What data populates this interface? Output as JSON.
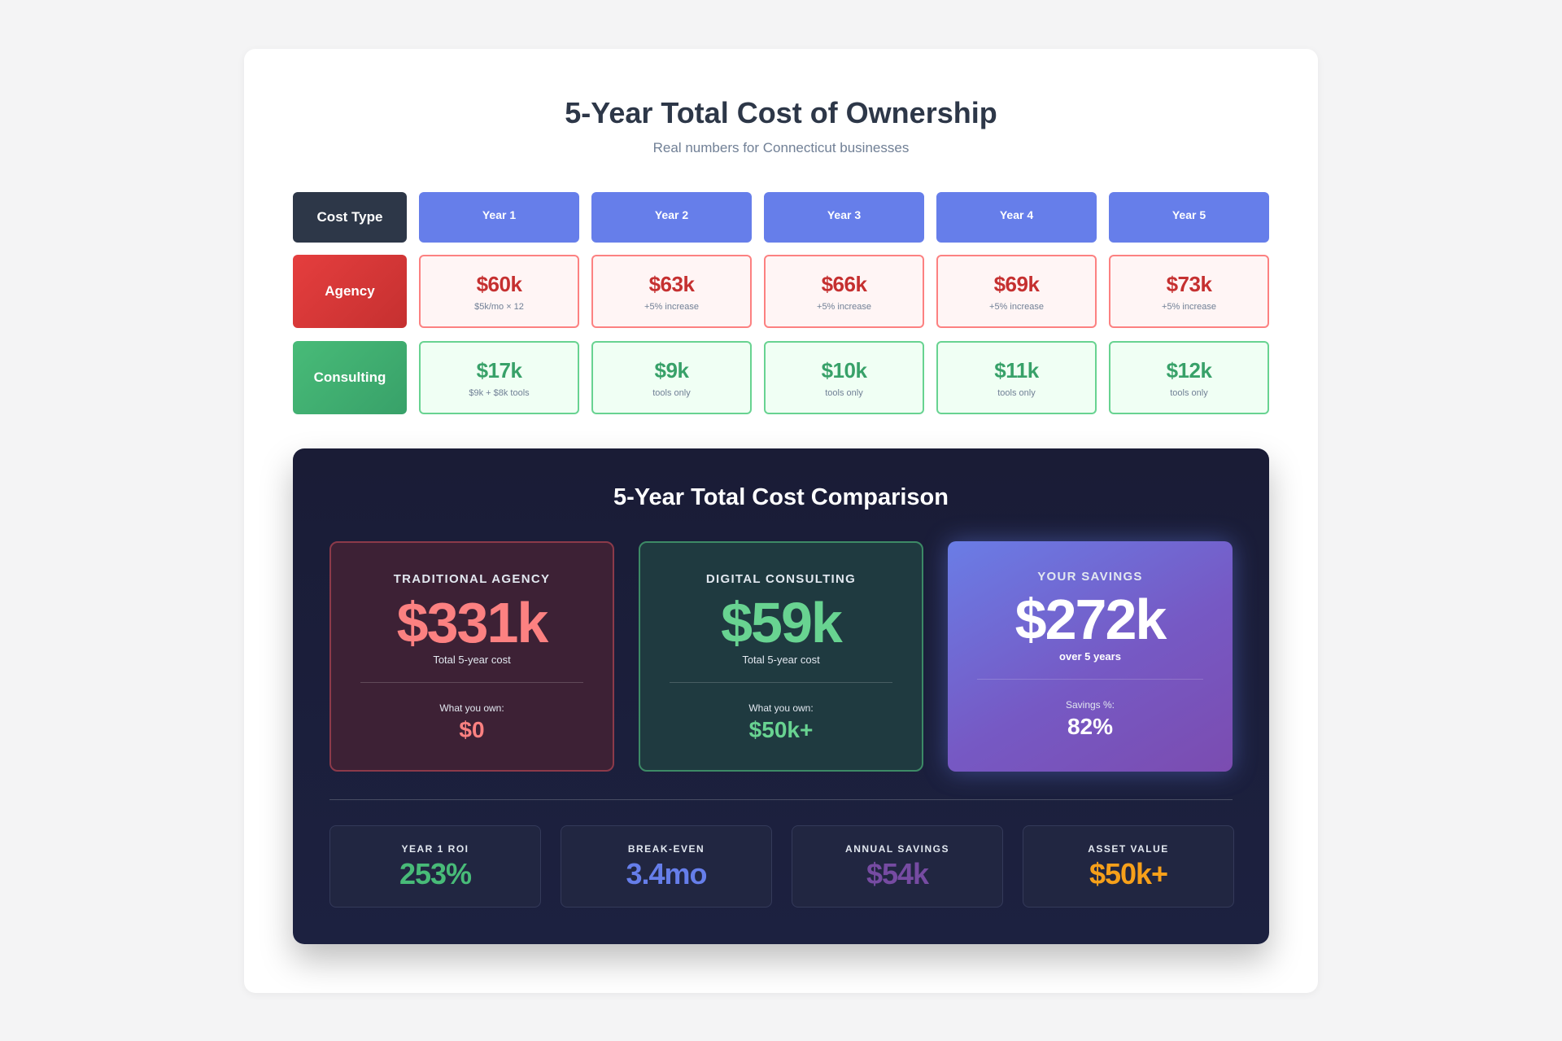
{
  "header": {
    "title": "5-Year Total Cost of Ownership",
    "subtitle": "Real numbers for Connecticut businesses"
  },
  "table": {
    "type_header": "Cost Type",
    "years": [
      "Year 1",
      "Year 2",
      "Year 3",
      "Year 4",
      "Year 5"
    ],
    "rows": [
      {
        "label": "Agency",
        "cells": [
          {
            "amount": "$60k",
            "note": "$5k/mo × 12"
          },
          {
            "amount": "$63k",
            "note": "+5% increase"
          },
          {
            "amount": "$66k",
            "note": "+5% increase"
          },
          {
            "amount": "$69k",
            "note": "+5% increase"
          },
          {
            "amount": "$73k",
            "note": "+5% increase"
          }
        ]
      },
      {
        "label": "Consulting",
        "cells": [
          {
            "amount": "$17k",
            "note": "$9k + $8k tools"
          },
          {
            "amount": "$9k",
            "note": "tools only"
          },
          {
            "amount": "$10k",
            "note": "tools only"
          },
          {
            "amount": "$11k",
            "note": "tools only"
          },
          {
            "amount": "$12k",
            "note": "tools only"
          }
        ]
      }
    ]
  },
  "comparison": {
    "title": "5-Year Total Cost Comparison",
    "agency": {
      "label": "TRADITIONAL AGENCY",
      "total": "$331k",
      "sub": "Total 5-year cost",
      "own_label": "What you own:",
      "own_value": "$0"
    },
    "consulting": {
      "label": "DIGITAL CONSULTING",
      "total": "$59k",
      "sub": "Total 5-year cost",
      "own_label": "What you own:",
      "own_value": "$50k+"
    },
    "savings": {
      "label": "YOUR SAVINGS",
      "total": "$272k",
      "sub": "over 5 years",
      "own_label": "Savings %:",
      "own_value": "82%"
    }
  },
  "stats": [
    {
      "label": "YEAR 1 ROI",
      "value": "253%",
      "color": "#48bb78"
    },
    {
      "label": "BREAK-EVEN",
      "value": "3.4mo",
      "color": "#667eea"
    },
    {
      "label": "ANNUAL SAVINGS",
      "value": "$54k",
      "color": "#764ba2"
    },
    {
      "label": "ASSET VALUE",
      "value": "$50k+",
      "color": "#f6a01a"
    }
  ]
}
